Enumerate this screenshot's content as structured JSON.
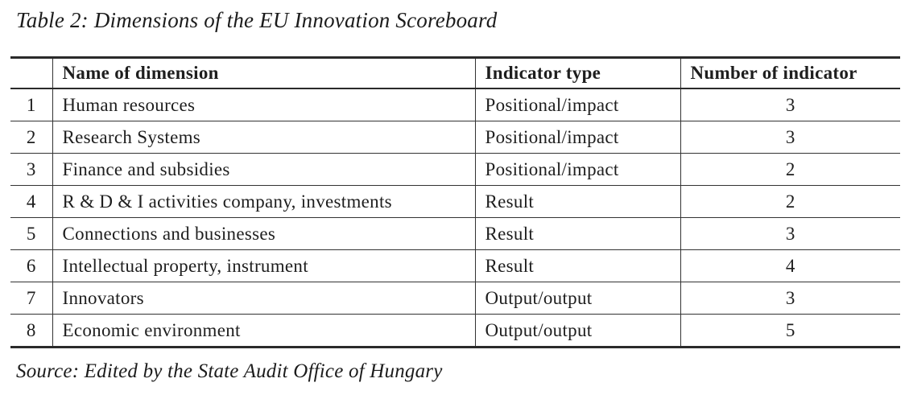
{
  "title": "Table 2: Dimensions of the EU Innovation Scoreboard",
  "source": "Source: Edited by the State Audit Office of Hungary",
  "colors": {
    "background": "#ffffff",
    "text": "#1c1c1c",
    "border": "#2a2a2a"
  },
  "table": {
    "headers": [
      "",
      "Name of dimension",
      "Indicator type",
      "Number of indicator"
    ],
    "rows": [
      {
        "num": "1",
        "name": "Human resources",
        "type": "Positional/impact",
        "count": "3"
      },
      {
        "num": "2",
        "name": "Research Systems",
        "type": "Positional/impact",
        "count": "3"
      },
      {
        "num": "3",
        "name": "Finance and subsidies",
        "type": "Positional/impact",
        "count": "2"
      },
      {
        "num": "4",
        "name": "R & D & I activities company, investments",
        "type": "Result",
        "count": "2"
      },
      {
        "num": "5",
        "name": "Connections and businesses",
        "type": "Result",
        "count": "3"
      },
      {
        "num": "6",
        "name": "Intellectual property, instrument",
        "type": "Result",
        "count": "4"
      },
      {
        "num": "7",
        "name": "Innovators",
        "type": "Output/output",
        "count": "3"
      },
      {
        "num": "8",
        "name": "Economic environment",
        "type": "Output/output",
        "count": "5"
      }
    ]
  }
}
